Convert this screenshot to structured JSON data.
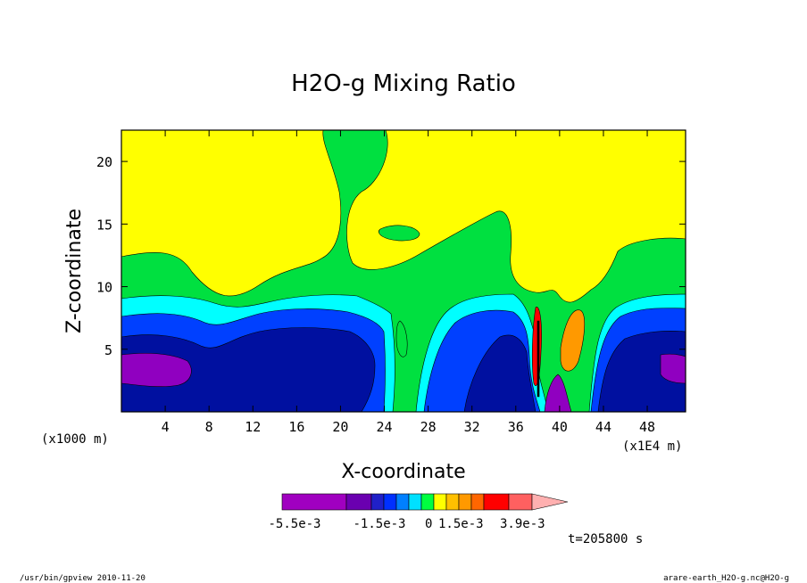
{
  "chart_data": {
    "type": "heatmap",
    "title": "H2O-g Mixing Ratio",
    "xlabel": "X-coordinate",
    "ylabel": "Z-coordinate",
    "x_units_note": "(x1E4 m)",
    "y_units_note": "(x1000 m)",
    "x_ticks": [
      "4",
      "8",
      "12",
      "16",
      "20",
      "24",
      "28",
      "32",
      "36",
      "40",
      "44",
      "48"
    ],
    "y_ticks": [
      "5",
      "10",
      "15",
      "20"
    ],
    "xlim": [
      0,
      51.5
    ],
    "ylim": [
      0,
      22.5
    ],
    "colorbar": {
      "labels": [
        "-5.5e-3",
        "-1.5e-3",
        "0",
        "1.5e-3",
        "3.9e-3"
      ],
      "levels": [
        -0.0055,
        -0.0015,
        0,
        0.0015,
        0.0039
      ],
      "colors": [
        "#a000c0",
        "#6a00b0",
        "#2020c8",
        "#0030ff",
        "#0080ff",
        "#00e0ff",
        "#00ff40",
        "#ffff00",
        "#ffc000",
        "#ff9900",
        "#ff6600",
        "#ff0000",
        "#ff6060",
        "#ffb0b0"
      ]
    },
    "field_colors": {
      "yellow": "#ffff00",
      "green": "#00e040",
      "cyan": "#00ffff",
      "blue": "#0040ff",
      "dark_blue": "#0010a0",
      "purple": "#9000c0",
      "orange": "#ff9900"
    }
  },
  "annotations": {
    "time": "t=205800 s",
    "footer_left": "/usr/bin/gpview  2010-11-20",
    "footer_right": "arare-earth_H2O-g.nc@H2O-g"
  }
}
